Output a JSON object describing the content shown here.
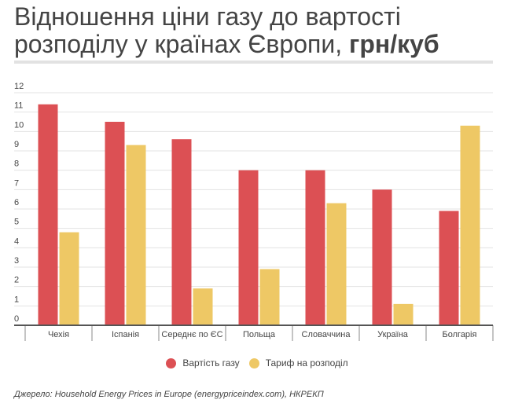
{
  "title": {
    "main": "Відношення ціни газу до вартості розподілу у країнах Європи, ",
    "unit": "грн/куб"
  },
  "source": "Джерело: Household Energy Prices in Europe (energypriceindex.com), НКРЕКП",
  "chart_data": {
    "type": "bar",
    "title": "Відношення ціни газу до вартості розподілу у країнах Європи, грн/куб",
    "categories": [
      "Чехія",
      "Іспанія",
      "Середнє по ЄС",
      "Польща",
      "Словаччина",
      "Україна",
      "Болгарія"
    ],
    "series": [
      {
        "name": "Вартість газу",
        "color": "#dc5054",
        "values": [
          11.4,
          10.5,
          9.6,
          8.0,
          8.0,
          7.0,
          5.9
        ]
      },
      {
        "name": "Тариф на розподіл",
        "color": "#eec865",
        "values": [
          4.8,
          9.3,
          1.9,
          2.9,
          6.3,
          1.1,
          10.3
        ]
      }
    ],
    "ylim": [
      0,
      12
    ],
    "yticks": [
      0,
      1,
      2,
      3,
      4,
      5,
      6,
      7,
      8,
      9,
      10,
      11,
      12
    ],
    "grid": true,
    "legend": "bottom-center"
  }
}
